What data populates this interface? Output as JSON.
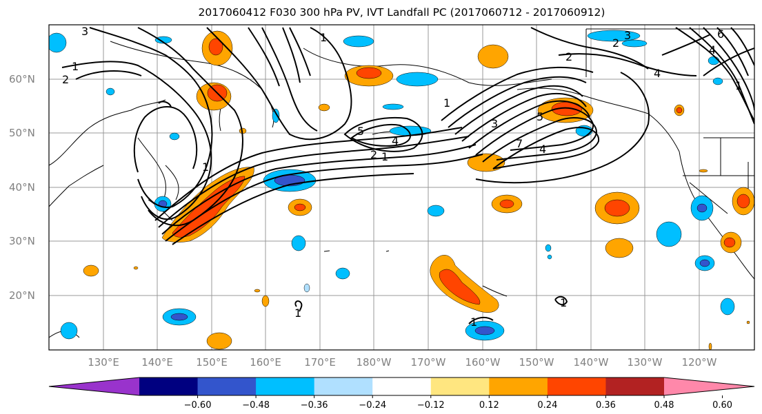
{
  "title": "2017060412 F030 300 hPa PV, IVT Landfall PC (2017060712 - 2017060912)",
  "map": {
    "lat_labels": [
      "60°N",
      "50°N",
      "40°N",
      "30°N",
      "20°N"
    ],
    "lon_labels": [
      "130°E",
      "140°E",
      "150°E",
      "160°E",
      "170°E",
      "180°W",
      "170°W",
      "160°W",
      "150°W",
      "140°W",
      "130°W",
      "120°W"
    ],
    "contour_labels": [
      "3",
      "1",
      "2",
      "1",
      "1",
      "2",
      "1",
      "5",
      "4",
      "2",
      "1",
      "3",
      "5",
      "7",
      "4",
      "4",
      "3",
      "2",
      "4",
      "6",
      "1",
      "1",
      "1",
      "1"
    ]
  },
  "colorbar": {
    "ticks": [
      "−0.60",
      "−0.48",
      "−0.36",
      "−0.24",
      "−0.12",
      "0.12",
      "0.24",
      "0.36",
      "0.48",
      "0.60"
    ],
    "colors": [
      "#9933cc",
      "#000080",
      "#3355cc",
      "#00bfff",
      "#b0e0ff",
      "#ffffff",
      "#ffe680",
      "#ffa500",
      "#ff4500",
      "#b22222",
      "#ff88aa"
    ]
  },
  "colors": {
    "grid": "#999999",
    "coast": "#000000",
    "contour": "#000000",
    "label": "#808080"
  }
}
